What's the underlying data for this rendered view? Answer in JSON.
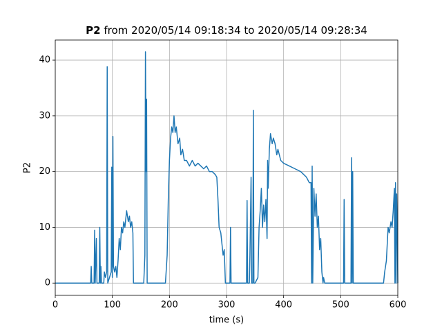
{
  "chart_data": {
    "type": "line",
    "title": {
      "name": "P2",
      "range": "from 2020/05/14 09:18:34 to 2020/05/14 09:28:34"
    },
    "xlabel": "time (s)",
    "ylabel": "P2",
    "xlim": [
      0,
      600
    ],
    "xticks": [
      0,
      100,
      200,
      300,
      400,
      500,
      600
    ],
    "ylim": [
      -2.2,
      43.6
    ],
    "yticks": [
      0,
      10,
      20,
      30,
      40
    ],
    "grid": true,
    "x": [
      0,
      62,
      63,
      64,
      68,
      69,
      70,
      72,
      73,
      77,
      78,
      79,
      80,
      81,
      85,
      86,
      88,
      90,
      91,
      92,
      95,
      98,
      99,
      100,
      101,
      102,
      104,
      106,
      108,
      110,
      112,
      114,
      116,
      118,
      120,
      122,
      125,
      128,
      130,
      132,
      134,
      136,
      137,
      155,
      157,
      158,
      159,
      160,
      161,
      193,
      196,
      198,
      200,
      202,
      204,
      206,
      208,
      210,
      212,
      215,
      218,
      220,
      223,
      226,
      230,
      235,
      240,
      245,
      250,
      255,
      260,
      265,
      270,
      275,
      280,
      283,
      285,
      287,
      290,
      292,
      294,
      296,
      298,
      306,
      307,
      308,
      335,
      336,
      337,
      340,
      341,
      343,
      344,
      346,
      347,
      348,
      350,
      355,
      357,
      359,
      361,
      363,
      365,
      367,
      369,
      371,
      372,
      373,
      375,
      377,
      380,
      382,
      385,
      388,
      390,
      395,
      400,
      410,
      420,
      430,
      440,
      445,
      448,
      449,
      450,
      451,
      453,
      455,
      457,
      459,
      461,
      463,
      465,
      467,
      469,
      470,
      472,
      505,
      506,
      507,
      518,
      519,
      520,
      521,
      522,
      575,
      577,
      580,
      583,
      585,
      588,
      590,
      592,
      594,
      595,
      596,
      597,
      598,
      599,
      600
    ],
    "series": [
      {
        "name": "P2",
        "color": "#1f77b4",
        "values": [
          0,
          0,
          3,
          0,
          0,
          9.5,
          0,
          8,
          0,
          0,
          10,
          0,
          3,
          0,
          0,
          2,
          1,
          2,
          38.8,
          0,
          1,
          2,
          20.8,
          1,
          26.3,
          3,
          2,
          3,
          1,
          4,
          8,
          6,
          10,
          9,
          11,
          10,
          13,
          11,
          12,
          10,
          11,
          9,
          0,
          0,
          5,
          41.5,
          20,
          33,
          0,
          0,
          5,
          15,
          22,
          26,
          28,
          27,
          30,
          27,
          28,
          25,
          26,
          23,
          24,
          22,
          22,
          21,
          22,
          21,
          21.5,
          21,
          20.5,
          21,
          20,
          20,
          19.5,
          19,
          15,
          10,
          9,
          7,
          5,
          6,
          0,
          0,
          10,
          0,
          0,
          14.8,
          0,
          0,
          5,
          19,
          0,
          0,
          31,
          0,
          0,
          1,
          10,
          13,
          17,
          10,
          14,
          11,
          15,
          8,
          22,
          17,
          24,
          26.8,
          25,
          26,
          25,
          23,
          24,
          22,
          21.5,
          21,
          20.5,
          20,
          19,
          18,
          18,
          0,
          21,
          0,
          17,
          12,
          16,
          10,
          12,
          6,
          8,
          2,
          0,
          1,
          0,
          0,
          15,
          0,
          0,
          22.5,
          0,
          20,
          0,
          0,
          2,
          4,
          10,
          9,
          11,
          10,
          13,
          17,
          0,
          18,
          0,
          16,
          10,
          0
        ]
      }
    ]
  }
}
